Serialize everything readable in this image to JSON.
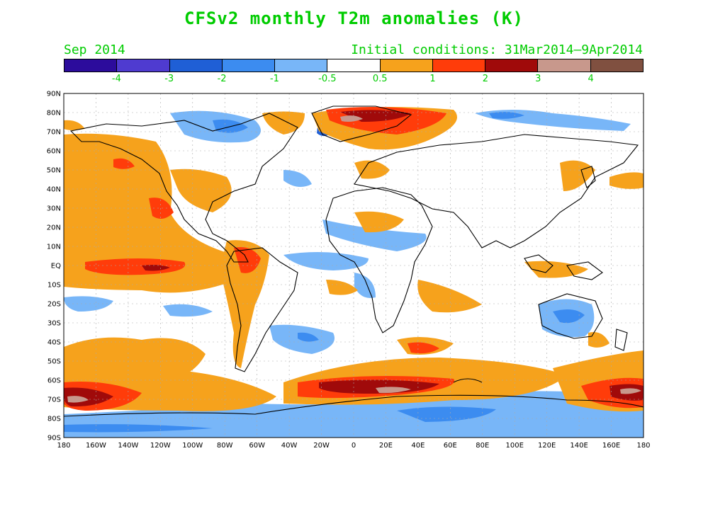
{
  "title": "CFSv2 monthly T2m anomalies (K)",
  "valid_month": "Sep 2014",
  "initial_conditions": "Initial conditions: 31Mar2014–9Apr2014",
  "colorbar": {
    "colors": [
      "#2c0c9c",
      "#4f3bd0",
      "#1f5fd6",
      "#3c8cf0",
      "#78b6f8",
      "#ffffff",
      "#f6a21c",
      "#ff3c0a",
      "#a00a0a",
      "#c8988c",
      "#805040"
    ],
    "labels": [
      "-4",
      "-3",
      "-2",
      "-1",
      "-0.5",
      "0.5",
      "1",
      "2",
      "3",
      "4"
    ]
  },
  "map": {
    "lat_labels": [
      "90N",
      "80N",
      "70N",
      "60N",
      "50N",
      "40N",
      "30N",
      "20N",
      "10N",
      "EQ",
      "10S",
      "20S",
      "30S",
      "40S",
      "50S",
      "60S",
      "70S",
      "80S",
      "90S"
    ],
    "lon_labels": [
      "180",
      "160W",
      "140W",
      "120W",
      "100W",
      "80W",
      "60W",
      "40W",
      "20W",
      "0",
      "20E",
      "40E",
      "60E",
      "80E",
      "100E",
      "120E",
      "140E",
      "160E",
      "180"
    ]
  }
}
